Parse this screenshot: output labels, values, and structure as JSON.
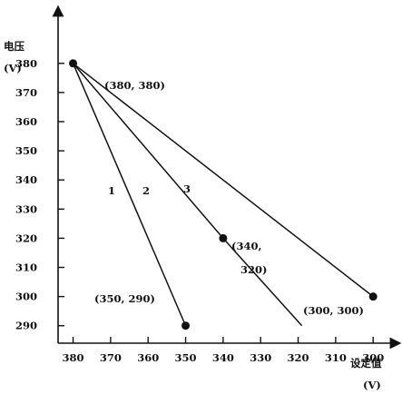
{
  "chart_data": {
    "type": "line",
    "ylabel": "电压",
    "ylabel_unit": "(V)",
    "xlabel": "设定值",
    "xlabel_unit": "(V)",
    "x_ticks": [
      380,
      370,
      360,
      350,
      340,
      330,
      320,
      310,
      300
    ],
    "y_ticks": [
      380,
      370,
      360,
      350,
      340,
      330,
      320,
      310,
      300,
      290
    ],
    "xlim": [
      384,
      294
    ],
    "ylim": [
      284,
      398
    ],
    "x_reversed": true,
    "grid": false,
    "series": [
      {
        "name": "1",
        "points": [
          [
            380,
            380
          ],
          [
            350,
            290
          ]
        ]
      },
      {
        "name": "2",
        "points": [
          [
            380,
            380
          ],
          [
            340,
            320
          ],
          [
            319,
            290
          ]
        ]
      },
      {
        "name": "3",
        "points": [
          [
            380,
            380
          ],
          [
            300,
            300
          ]
        ]
      }
    ],
    "markers": [
      {
        "x": 380,
        "y": 380,
        "label": "(380, 380)"
      },
      {
        "x": 350,
        "y": 290,
        "label": "(350, 290)"
      },
      {
        "x": 340,
        "y": 320,
        "label_lines": [
          "(340,",
          "320)"
        ]
      },
      {
        "x": 300,
        "y": 300,
        "label": "(300, 300)"
      }
    ]
  }
}
